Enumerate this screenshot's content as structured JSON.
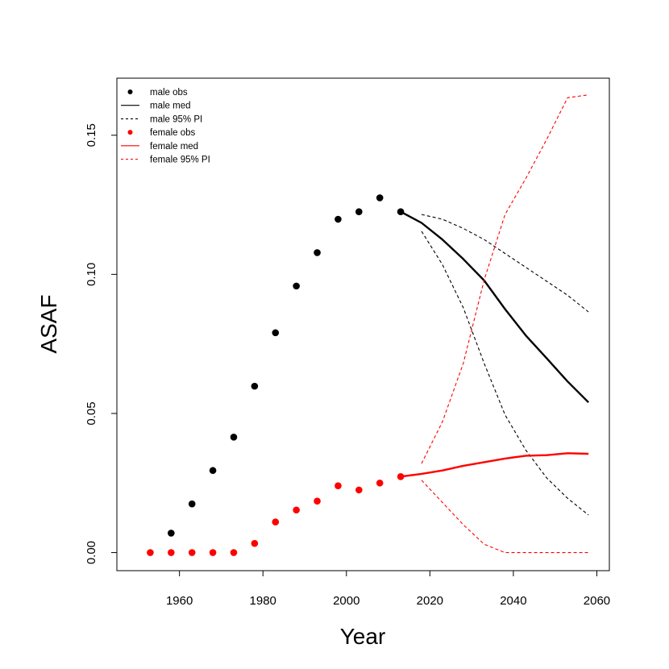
{
  "chart_data": {
    "type": "line",
    "title": "",
    "xlabel": "Year",
    "ylabel": "ASAF",
    "xlim": [
      1945,
      2063
    ],
    "ylim": [
      -0.0065,
      0.1705
    ],
    "x_ticks": [
      1960,
      1980,
      2000,
      2020,
      2040,
      2060
    ],
    "x_tick_labels": [
      "1960",
      "1980",
      "2000",
      "2020",
      "2040",
      "2060"
    ],
    "y_ticks": [
      0.0,
      0.05,
      0.1,
      0.15
    ],
    "y_tick_labels": [
      "0.00",
      "0.05",
      "0.10",
      "0.15"
    ],
    "grid": false,
    "legend_position": "top-left",
    "legend": [
      {
        "label": "male obs",
        "kind": "point",
        "color": "#000000"
      },
      {
        "label": "male med",
        "kind": "solid",
        "color": "#000000"
      },
      {
        "label": "male 95% PI",
        "kind": "dashed",
        "color": "#000000"
      },
      {
        "label": "female obs",
        "kind": "point",
        "color": "#ff0000"
      },
      {
        "label": "female med",
        "kind": "solid",
        "color": "#ff0000"
      },
      {
        "label": "female 95% PI",
        "kind": "dashed",
        "color": "#ff0000"
      }
    ],
    "series": [
      {
        "name": "male obs",
        "kind": "point",
        "color": "#000000",
        "x": [
          1958,
          1963,
          1968,
          1973,
          1978,
          1983,
          1988,
          1993,
          1998,
          2003,
          2008,
          2013
        ],
        "y": [
          0.007,
          0.0175,
          0.0295,
          0.0415,
          0.0598,
          0.079,
          0.0958,
          0.1078,
          0.1198,
          0.1225,
          0.1275,
          0.1225
        ]
      },
      {
        "name": "male med",
        "kind": "solid",
        "color": "#000000",
        "x": [
          2013,
          2018,
          2023,
          2028,
          2033,
          2038,
          2043,
          2048,
          2053,
          2058
        ],
        "y": [
          0.1225,
          0.1185,
          0.1125,
          0.1055,
          0.0978,
          0.0875,
          0.078,
          0.0698,
          0.0615,
          0.054
        ]
      },
      {
        "name": "male 95% PI upper",
        "kind": "dashed",
        "color": "#000000",
        "x": [
          2018,
          2023,
          2028,
          2033,
          2038,
          2043,
          2048,
          2053,
          2058
        ],
        "y": [
          0.1215,
          0.1198,
          0.1165,
          0.1125,
          0.1075,
          0.1025,
          0.0975,
          0.0925,
          0.0865
        ]
      },
      {
        "name": "male 95% PI lower",
        "kind": "dashed",
        "color": "#000000",
        "x": [
          2018,
          2023,
          2028,
          2033,
          2038,
          2043,
          2048,
          2053,
          2058
        ],
        "y": [
          0.1155,
          0.1035,
          0.088,
          0.068,
          0.0495,
          0.0368,
          0.0268,
          0.0195,
          0.0135
        ]
      },
      {
        "name": "female obs",
        "kind": "point",
        "color": "#ff0000",
        "x": [
          1953,
          1958,
          1963,
          1968,
          1973,
          1978,
          1983,
          1988,
          1993,
          1998,
          2003,
          2008,
          2013
        ],
        "y": [
          0.0,
          0.0,
          0.0,
          0.0,
          0.0,
          0.0033,
          0.011,
          0.0153,
          0.0185,
          0.024,
          0.0225,
          0.025,
          0.0273
        ]
      },
      {
        "name": "female med",
        "kind": "solid",
        "color": "#ff0000",
        "x": [
          2013,
          2018,
          2023,
          2028,
          2033,
          2038,
          2043,
          2048,
          2053,
          2058
        ],
        "y": [
          0.0273,
          0.0283,
          0.0295,
          0.0312,
          0.0325,
          0.0338,
          0.0348,
          0.035,
          0.0357,
          0.0355
        ]
      },
      {
        "name": "female 95% PI upper",
        "kind": "dashed",
        "color": "#ff0000",
        "x": [
          2018,
          2023,
          2028,
          2033,
          2038,
          2043,
          2048,
          2053,
          2058
        ],
        "y": [
          0.032,
          0.047,
          0.068,
          0.098,
          0.1215,
          0.1345,
          0.1485,
          0.1635,
          0.1645
        ]
      },
      {
        "name": "female 95% PI lower",
        "kind": "dashed",
        "color": "#ff0000",
        "x": [
          2018,
          2023,
          2028,
          2033,
          2038,
          2043,
          2048,
          2053,
          2058
        ],
        "y": [
          0.026,
          0.018,
          0.01,
          0.003,
          0.0,
          0.0,
          0.0,
          0.0,
          0.0
        ]
      }
    ]
  }
}
